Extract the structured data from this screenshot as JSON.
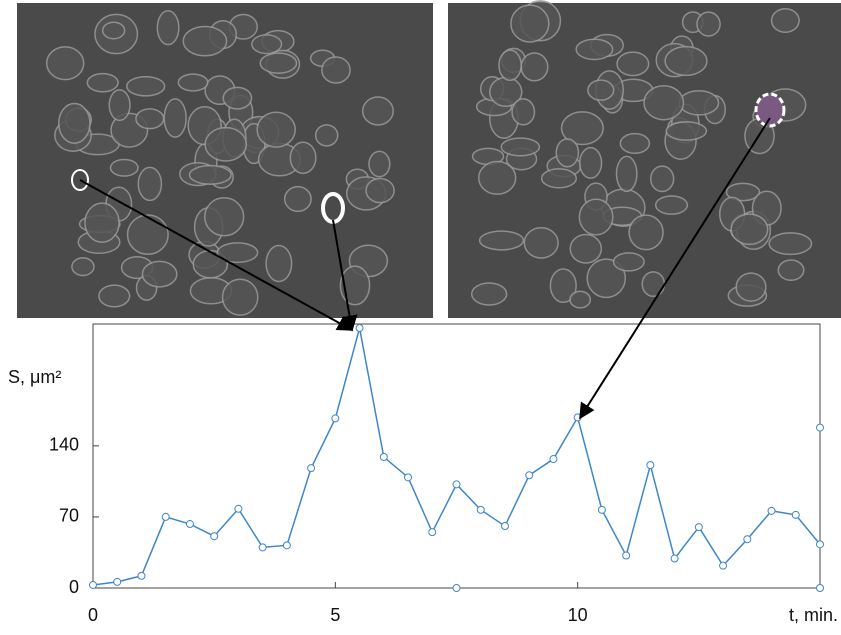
{
  "chart_data": {
    "type": "line",
    "y_label": "S, μm²",
    "x_label": "t, min.",
    "x": [
      0,
      0.5,
      1,
      1.5,
      2,
      2.5,
      3,
      3.5,
      4,
      4.5,
      5,
      5.5,
      6,
      6.5,
      7,
      7.5,
      8,
      8.5,
      9,
      9.5,
      10,
      10.5,
      11,
      11.5,
      12,
      12.5,
      13,
      13.5,
      14,
      14.5,
      15
    ],
    "values": [
      3,
      6,
      12,
      70,
      63,
      51,
      78,
      40,
      42,
      118,
      167,
      256,
      129,
      109,
      55,
      102,
      77,
      61,
      111,
      127,
      168,
      77,
      32,
      121,
      29,
      60,
      22,
      48,
      76,
      72,
      43
    ],
    "extra_points": {
      "x": [
        7.5,
        15,
        15
      ],
      "values": [
        0,
        0,
        158
      ]
    },
    "color": "#3f86c9",
    "xlim": [
      0,
      15
    ],
    "ylim": [
      0,
      260
    ],
    "xticks": [
      0,
      5,
      10
    ],
    "yticks": [
      0,
      70,
      140
    ]
  }
}
